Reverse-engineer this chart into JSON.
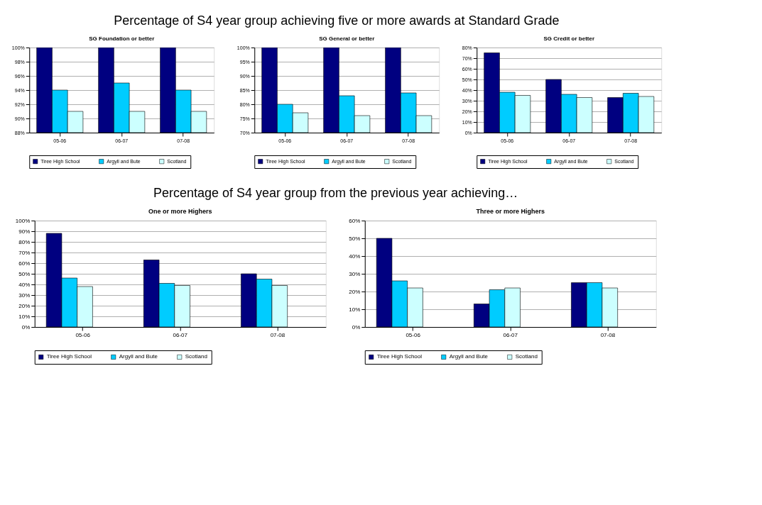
{
  "chart_data": [
    {
      "type": "bar",
      "title": "SG Foundation or better",
      "annotations": [
        "Percentage of S4 year group achieving five or more awards at Standard Grade"
      ],
      "categories": [
        "05-06",
        "06-07",
        "07-08"
      ],
      "series": [
        {
          "name": "Tiree High School",
          "color": "#000080",
          "values": [
            100,
            100,
            100
          ]
        },
        {
          "name": "Argyll and Bute",
          "color": "#00ccff",
          "values": [
            94,
            95,
            94
          ]
        },
        {
          "name": "Scotland",
          "color": "#ccffff",
          "values": [
            91,
            91,
            91
          ]
        }
      ],
      "ylim": [
        88,
        100
      ],
      "yticks": [
        {
          "value": 88,
          "label": "88%"
        },
        {
          "value": 90,
          "label": "90%"
        },
        {
          "value": 92,
          "label": "92%"
        },
        {
          "value": 94,
          "label": "94%"
        },
        {
          "value": 96,
          "label": "96%"
        },
        {
          "value": 98,
          "label": "98%"
        },
        {
          "value": 100,
          "label": "100%"
        }
      ],
      "grid": "y",
      "legend": "bottom"
    },
    {
      "type": "bar",
      "title": "SG General or better",
      "categories": [
        "05-06",
        "06-07",
        "07-08"
      ],
      "series": [
        {
          "name": "Tiree High School",
          "color": "#000080",
          "values": [
            100,
            100,
            100
          ]
        },
        {
          "name": "Argyll and Bute",
          "color": "#00ccff",
          "values": [
            80,
            83,
            84
          ]
        },
        {
          "name": "Scotland",
          "color": "#ccffff",
          "values": [
            77,
            76,
            76
          ]
        }
      ],
      "ylim": [
        70,
        100
      ],
      "yticks": [
        {
          "value": 70,
          "label": "70%"
        },
        {
          "value": 75,
          "label": "75%"
        },
        {
          "value": 80,
          "label": "80%"
        },
        {
          "value": 85,
          "label": "85%"
        },
        {
          "value": 90,
          "label": "90%"
        },
        {
          "value": 95,
          "label": "95%"
        },
        {
          "value": 100,
          "label": "100%"
        }
      ],
      "grid": "y",
      "legend": "bottom"
    },
    {
      "type": "bar",
      "title": "SG Credit or better",
      "categories": [
        "05-06",
        "06-07",
        "07-08"
      ],
      "series": [
        {
          "name": "Tiree High School",
          "color": "#000080",
          "values": [
            75,
            50,
            33
          ]
        },
        {
          "name": "Argyll and Bute",
          "color": "#00ccff",
          "values": [
            38,
            36,
            37
          ]
        },
        {
          "name": "Scotland",
          "color": "#ccffff",
          "values": [
            35,
            33,
            34
          ]
        }
      ],
      "ylim": [
        0,
        80
      ],
      "yticks": [
        {
          "value": 0,
          "label": "0%"
        },
        {
          "value": 10,
          "label": "10%"
        },
        {
          "value": 20,
          "label": "20%"
        },
        {
          "value": 30,
          "label": "30%"
        },
        {
          "value": 40,
          "label": "40%"
        },
        {
          "value": 50,
          "label": "50%"
        },
        {
          "value": 60,
          "label": "60%"
        },
        {
          "value": 70,
          "label": "70%"
        },
        {
          "value": 80,
          "label": "80%"
        }
      ],
      "grid": "y",
      "legend": "bottom"
    },
    {
      "type": "bar",
      "title": "One or more Highers",
      "annotations": [
        "Percentage of S4 year group from the previous year achieving…"
      ],
      "categories": [
        "05-06",
        "06-07",
        "07-08"
      ],
      "series": [
        {
          "name": "Tiree High School",
          "color": "#000080",
          "values": [
            88,
            63,
            50
          ]
        },
        {
          "name": "Argyll and Bute",
          "color": "#00ccff",
          "values": [
            46,
            41,
            45
          ]
        },
        {
          "name": "Scotland",
          "color": "#ccffff",
          "values": [
            38,
            39,
            39
          ]
        }
      ],
      "ylim": [
        0,
        100
      ],
      "yticks": [
        {
          "value": 0,
          "label": "0%"
        },
        {
          "value": 10,
          "label": "10%"
        },
        {
          "value": 20,
          "label": "20%"
        },
        {
          "value": 30,
          "label": "30%"
        },
        {
          "value": 40,
          "label": "40%"
        },
        {
          "value": 50,
          "label": "50%"
        },
        {
          "value": 60,
          "label": "60%"
        },
        {
          "value": 70,
          "label": "70%"
        },
        {
          "value": 80,
          "label": "80%"
        },
        {
          "value": 90,
          "label": "90%"
        },
        {
          "value": 100,
          "label": "100%"
        }
      ],
      "grid": "y",
      "legend": "bottom"
    },
    {
      "type": "bar",
      "title": "Three or more Highers",
      "categories": [
        "05-06",
        "06-07",
        "07-08"
      ],
      "series": [
        {
          "name": "Tiree High School",
          "color": "#000080",
          "values": [
            50,
            13,
            25
          ]
        },
        {
          "name": "Argyll and Bute",
          "color": "#00ccff",
          "values": [
            26,
            21,
            25
          ]
        },
        {
          "name": "Scotland",
          "color": "#ccffff",
          "values": [
            22,
            22,
            22
          ]
        }
      ],
      "ylim": [
        0,
        60
      ],
      "yticks": [
        {
          "value": 0,
          "label": "0%"
        },
        {
          "value": 10,
          "label": "10%"
        },
        {
          "value": 20,
          "label": "20%"
        },
        {
          "value": 30,
          "label": "30%"
        },
        {
          "value": 40,
          "label": "40%"
        },
        {
          "value": 50,
          "label": "50%"
        },
        {
          "value": 60,
          "label": "60%"
        }
      ],
      "grid": "y",
      "legend": "bottom"
    }
  ]
}
